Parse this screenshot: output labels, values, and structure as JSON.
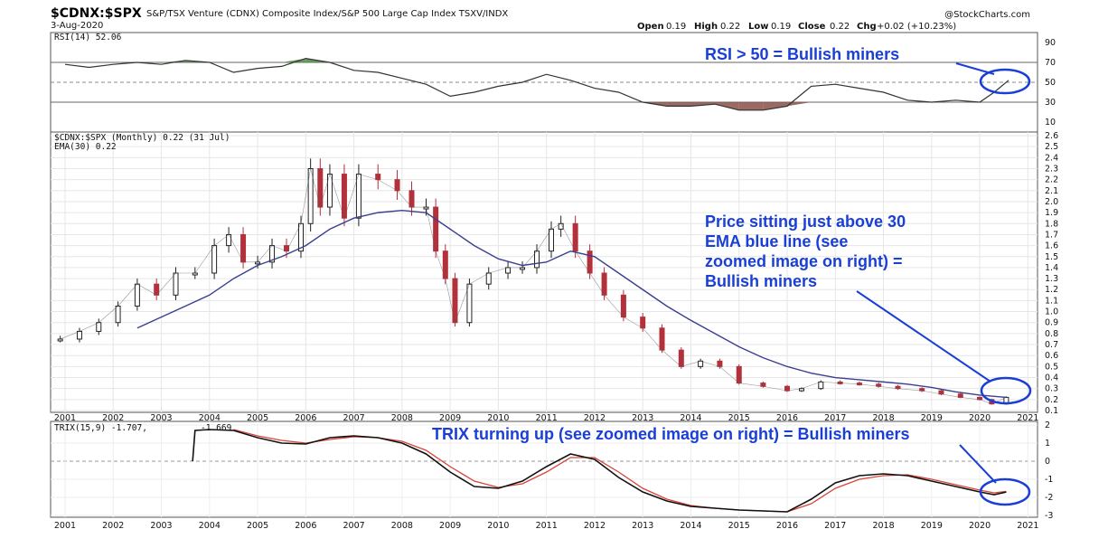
{
  "header": {
    "symbol": "$CDNX:$SPX",
    "description": "S&P/TSX Venture (CDNX) Composite Index/S&P 500 Large Cap Index  TSXV/INDX",
    "date": "3-Aug-2020",
    "watermark": "@StockCharts.com",
    "open_label": "Open",
    "open_value": "0.19",
    "high_label": "High",
    "high_value": "0.22",
    "low_label": "Low",
    "low_value": "0.19",
    "close_label": "Close",
    "close_value": "0.22",
    "chg_label": "Chg",
    "chg_value": "+0.02 (+10.23%)"
  },
  "colors": {
    "up": "#222222",
    "down": "#b3313a",
    "ema": "#3a3f8f",
    "trix": "#111111",
    "signal": "#d9443a",
    "annotation": "#1a3fd6",
    "rsi_fill_up": "#4f8a44",
    "rsi_fill_down": "#8a5048"
  },
  "chart_data": [
    {
      "type": "line",
      "title": "RSI(14) 52.06",
      "legend": [
        "RSI(14) 52.06"
      ],
      "ylim": [
        0,
        100
      ],
      "yticks": [
        "90",
        "70",
        "50",
        "30",
        "10"
      ],
      "reference_lines": [
        70,
        50,
        30
      ],
      "x": [
        2001.0,
        2001.5,
        2002.0,
        2002.5,
        2003.0,
        2003.5,
        2004.0,
        2004.5,
        2005.0,
        2005.5,
        2006.0,
        2006.5,
        2007.0,
        2007.5,
        2008.0,
        2008.5,
        2009.0,
        2009.5,
        2010.0,
        2010.5,
        2011.0,
        2011.5,
        2012.0,
        2012.5,
        2013.0,
        2013.5,
        2014.0,
        2014.5,
        2015.0,
        2015.5,
        2016.0,
        2016.5,
        2017.0,
        2017.5,
        2018.0,
        2018.5,
        2019.0,
        2019.5,
        2020.0,
        2020.3,
        2020.6
      ],
      "values": [
        68,
        65,
        68,
        70,
        68,
        72,
        70,
        60,
        64,
        66,
        74,
        70,
        62,
        60,
        54,
        48,
        36,
        40,
        46,
        50,
        58,
        52,
        44,
        40,
        30,
        26,
        26,
        28,
        22,
        22,
        26,
        46,
        48,
        44,
        40,
        32,
        30,
        32,
        30,
        40,
        52
      ]
    },
    {
      "type": "line",
      "title": "$CDNX:$SPX (Monthly) 0.22 (31 Jul)",
      "legend": [
        "$CDNX:$SPX (Monthly) 0.22 (31 Jul)",
        "EMA(30) 0.22"
      ],
      "ylim": [
        0.1,
        2.6
      ],
      "yticks": [
        "2.6",
        "2.5",
        "2.4",
        "2.3",
        "2.2",
        "2.1",
        "2.0",
        "1.9",
        "1.8",
        "1.7",
        "1.6",
        "1.5",
        "1.4",
        "1.3",
        "1.2",
        "1.1",
        "1.0",
        "0.9",
        "0.8",
        "0.7",
        "0.6",
        "0.5",
        "0.4",
        "0.3",
        "0.2",
        "0.1"
      ],
      "xticks": [
        "2001",
        "2002",
        "2003",
        "2004",
        "2005",
        "2006",
        "2007",
        "2008",
        "2009",
        "2010",
        "2011",
        "2012",
        "2013",
        "2014",
        "2015",
        "2016",
        "2017",
        "2018",
        "2019",
        "2020",
        "2021"
      ],
      "series": [
        {
          "name": "$CDNX:$SPX",
          "x": [
            2000.9,
            2001.3,
            2001.7,
            2002.1,
            2002.5,
            2002.9,
            2003.3,
            2003.7,
            2004.1,
            2004.4,
            2004.7,
            2005.0,
            2005.3,
            2005.6,
            2005.9,
            2006.1,
            2006.3,
            2006.5,
            2006.8,
            2007.1,
            2007.5,
            2007.9,
            2008.2,
            2008.5,
            2008.7,
            2008.9,
            2009.1,
            2009.4,
            2009.8,
            2010.2,
            2010.5,
            2010.8,
            2011.1,
            2011.3,
            2011.6,
            2011.9,
            2012.2,
            2012.6,
            2013.0,
            2013.4,
            2013.8,
            2014.2,
            2014.6,
            2015.0,
            2015.5,
            2016.0,
            2016.3,
            2016.7,
            2017.1,
            2017.5,
            2017.9,
            2018.3,
            2018.8,
            2019.2,
            2019.6,
            2020.0,
            2020.25,
            2020.55
          ],
          "values": [
            0.75,
            0.82,
            0.9,
            1.05,
            1.25,
            1.15,
            1.35,
            1.35,
            1.6,
            1.7,
            1.45,
            1.45,
            1.6,
            1.55,
            1.8,
            2.3,
            1.95,
            2.25,
            1.85,
            2.25,
            2.2,
            2.1,
            1.95,
            1.95,
            1.55,
            1.3,
            0.9,
            1.25,
            1.35,
            1.4,
            1.4,
            1.55,
            1.75,
            1.8,
            1.55,
            1.35,
            1.15,
            0.95,
            0.85,
            0.65,
            0.5,
            0.55,
            0.5,
            0.35,
            0.32,
            0.28,
            0.3,
            0.36,
            0.35,
            0.34,
            0.32,
            0.3,
            0.28,
            0.25,
            0.22,
            0.2,
            0.16,
            0.22
          ]
        },
        {
          "name": "EMA(30)",
          "x": [
            2002.5,
            2003.0,
            2003.5,
            2004.0,
            2004.5,
            2005.0,
            2005.5,
            2006.0,
            2006.5,
            2007.0,
            2007.5,
            2008.0,
            2008.5,
            2009.0,
            2009.5,
            2010.0,
            2010.5,
            2011.0,
            2011.5,
            2012.0,
            2012.5,
            2013.0,
            2013.5,
            2014.0,
            2014.5,
            2015.0,
            2015.5,
            2016.0,
            2016.5,
            2017.0,
            2017.5,
            2018.0,
            2018.5,
            2019.0,
            2019.5,
            2020.0,
            2020.55
          ],
          "values": [
            0.85,
            0.95,
            1.05,
            1.15,
            1.3,
            1.42,
            1.5,
            1.6,
            1.75,
            1.85,
            1.9,
            1.92,
            1.9,
            1.75,
            1.6,
            1.48,
            1.42,
            1.45,
            1.55,
            1.5,
            1.35,
            1.2,
            1.05,
            0.92,
            0.8,
            0.68,
            0.58,
            0.5,
            0.44,
            0.4,
            0.38,
            0.36,
            0.34,
            0.31,
            0.27,
            0.24,
            0.22
          ]
        }
      ]
    },
    {
      "type": "line",
      "title": "TRIX(15,9) -1.707, -1.669",
      "legend": [
        "TRIX(15,9) -1.707,",
        "-1.669"
      ],
      "ylim": [
        -3,
        2
      ],
      "yticks": [
        "2",
        "1",
        "0",
        "-1",
        "-2",
        "-3"
      ],
      "xticks": [
        "2001",
        "2002",
        "2003",
        "2004",
        "2005",
        "2006",
        "2007",
        "2008",
        "2009",
        "2010",
        "2011",
        "2012",
        "2013",
        "2014",
        "2015",
        "2016",
        "2017",
        "2018",
        "2019",
        "2020",
        "2021"
      ],
      "series": [
        {
          "name": "TRIX",
          "x": [
            2003.65,
            2003.7,
            2004.0,
            2004.5,
            2005.0,
            2005.5,
            2006.0,
            2006.5,
            2007.0,
            2007.5,
            2008.0,
            2008.5,
            2009.0,
            2009.5,
            2010.0,
            2010.5,
            2011.0,
            2011.5,
            2012.0,
            2012.5,
            2013.0,
            2013.5,
            2014.0,
            2014.5,
            2015.0,
            2015.5,
            2016.0,
            2016.5,
            2017.0,
            2017.5,
            2018.0,
            2018.5,
            2019.0,
            2019.5,
            2020.0,
            2020.3,
            2020.55
          ],
          "values": [
            0.0,
            1.7,
            1.75,
            1.7,
            1.3,
            1.0,
            0.95,
            1.3,
            1.4,
            1.3,
            1.0,
            0.4,
            -0.6,
            -1.4,
            -1.5,
            -1.1,
            -0.3,
            0.4,
            0.1,
            -0.9,
            -1.7,
            -2.2,
            -2.5,
            -2.6,
            -2.7,
            -2.75,
            -2.8,
            -2.1,
            -1.2,
            -0.8,
            -0.7,
            -0.8,
            -1.1,
            -1.4,
            -1.7,
            -1.85,
            -1.707
          ]
        },
        {
          "name": "Signal",
          "x": [
            2004.5,
            2005.0,
            2005.5,
            2006.0,
            2006.5,
            2007.0,
            2007.5,
            2008.0,
            2008.5,
            2009.0,
            2009.5,
            2010.0,
            2010.5,
            2011.0,
            2011.5,
            2012.0,
            2012.5,
            2013.0,
            2013.5,
            2014.0,
            2014.5,
            2015.0,
            2015.5,
            2016.0,
            2016.5,
            2017.0,
            2017.5,
            2018.0,
            2018.5,
            2019.0,
            2019.5,
            2020.0,
            2020.3,
            2020.55
          ],
          "values": [
            1.75,
            1.4,
            1.15,
            1.0,
            1.2,
            1.35,
            1.3,
            1.1,
            0.6,
            -0.3,
            -1.1,
            -1.45,
            -1.25,
            -0.6,
            0.2,
            0.2,
            -0.6,
            -1.5,
            -2.1,
            -2.45,
            -2.6,
            -2.7,
            -2.75,
            -2.8,
            -2.35,
            -1.5,
            -1.0,
            -0.8,
            -0.75,
            -1.0,
            -1.3,
            -1.6,
            -1.75,
            -1.669
          ]
        }
      ]
    }
  ],
  "annotations": {
    "rsi": "RSI > 50 = Bullish miners",
    "price_line1": "Price sitting just above 30",
    "price_line2": "EMA blue line (see",
    "price_line3": "zoomed image on right) =",
    "price_line4": "Bullish miners",
    "trix": "TRIX turning up (see zoomed image on right) = Bullish miners"
  }
}
